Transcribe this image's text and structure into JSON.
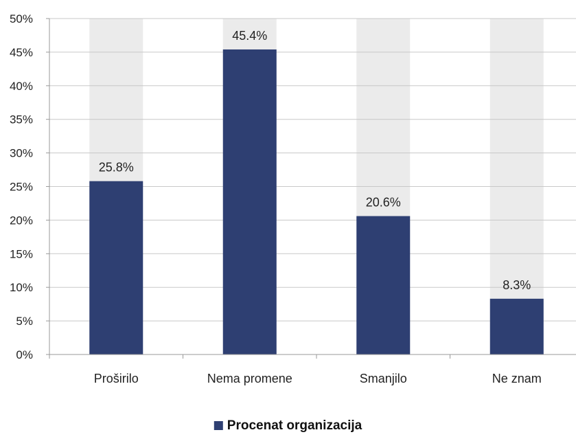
{
  "chart_data": {
    "type": "bar",
    "categories": [
      "Proširilo",
      "Nema promene",
      "Smanjilo",
      "Ne znam"
    ],
    "series": [
      {
        "name": "Procenat organizacija",
        "values": [
          25.8,
          45.4,
          20.6,
          8.3
        ],
        "labels": [
          "25.8%",
          "45.4%",
          "20.6%",
          "8.3%"
        ]
      }
    ],
    "ylim": [
      0,
      50
    ],
    "yticks": [
      0,
      5,
      10,
      15,
      20,
      25,
      30,
      35,
      40,
      45,
      50
    ],
    "ytick_labels": [
      "0%",
      "5%",
      "10%",
      "15%",
      "20%",
      "25%",
      "30%",
      "35%",
      "40%",
      "45%",
      "50%"
    ],
    "grid": true,
    "background_bars": true,
    "legend_position": "bottom-center",
    "colors": {
      "bar": "#2e3f72",
      "background_bar": "#ebebeb",
      "grid": "#c8c8c8",
      "axis": "#999999"
    }
  }
}
